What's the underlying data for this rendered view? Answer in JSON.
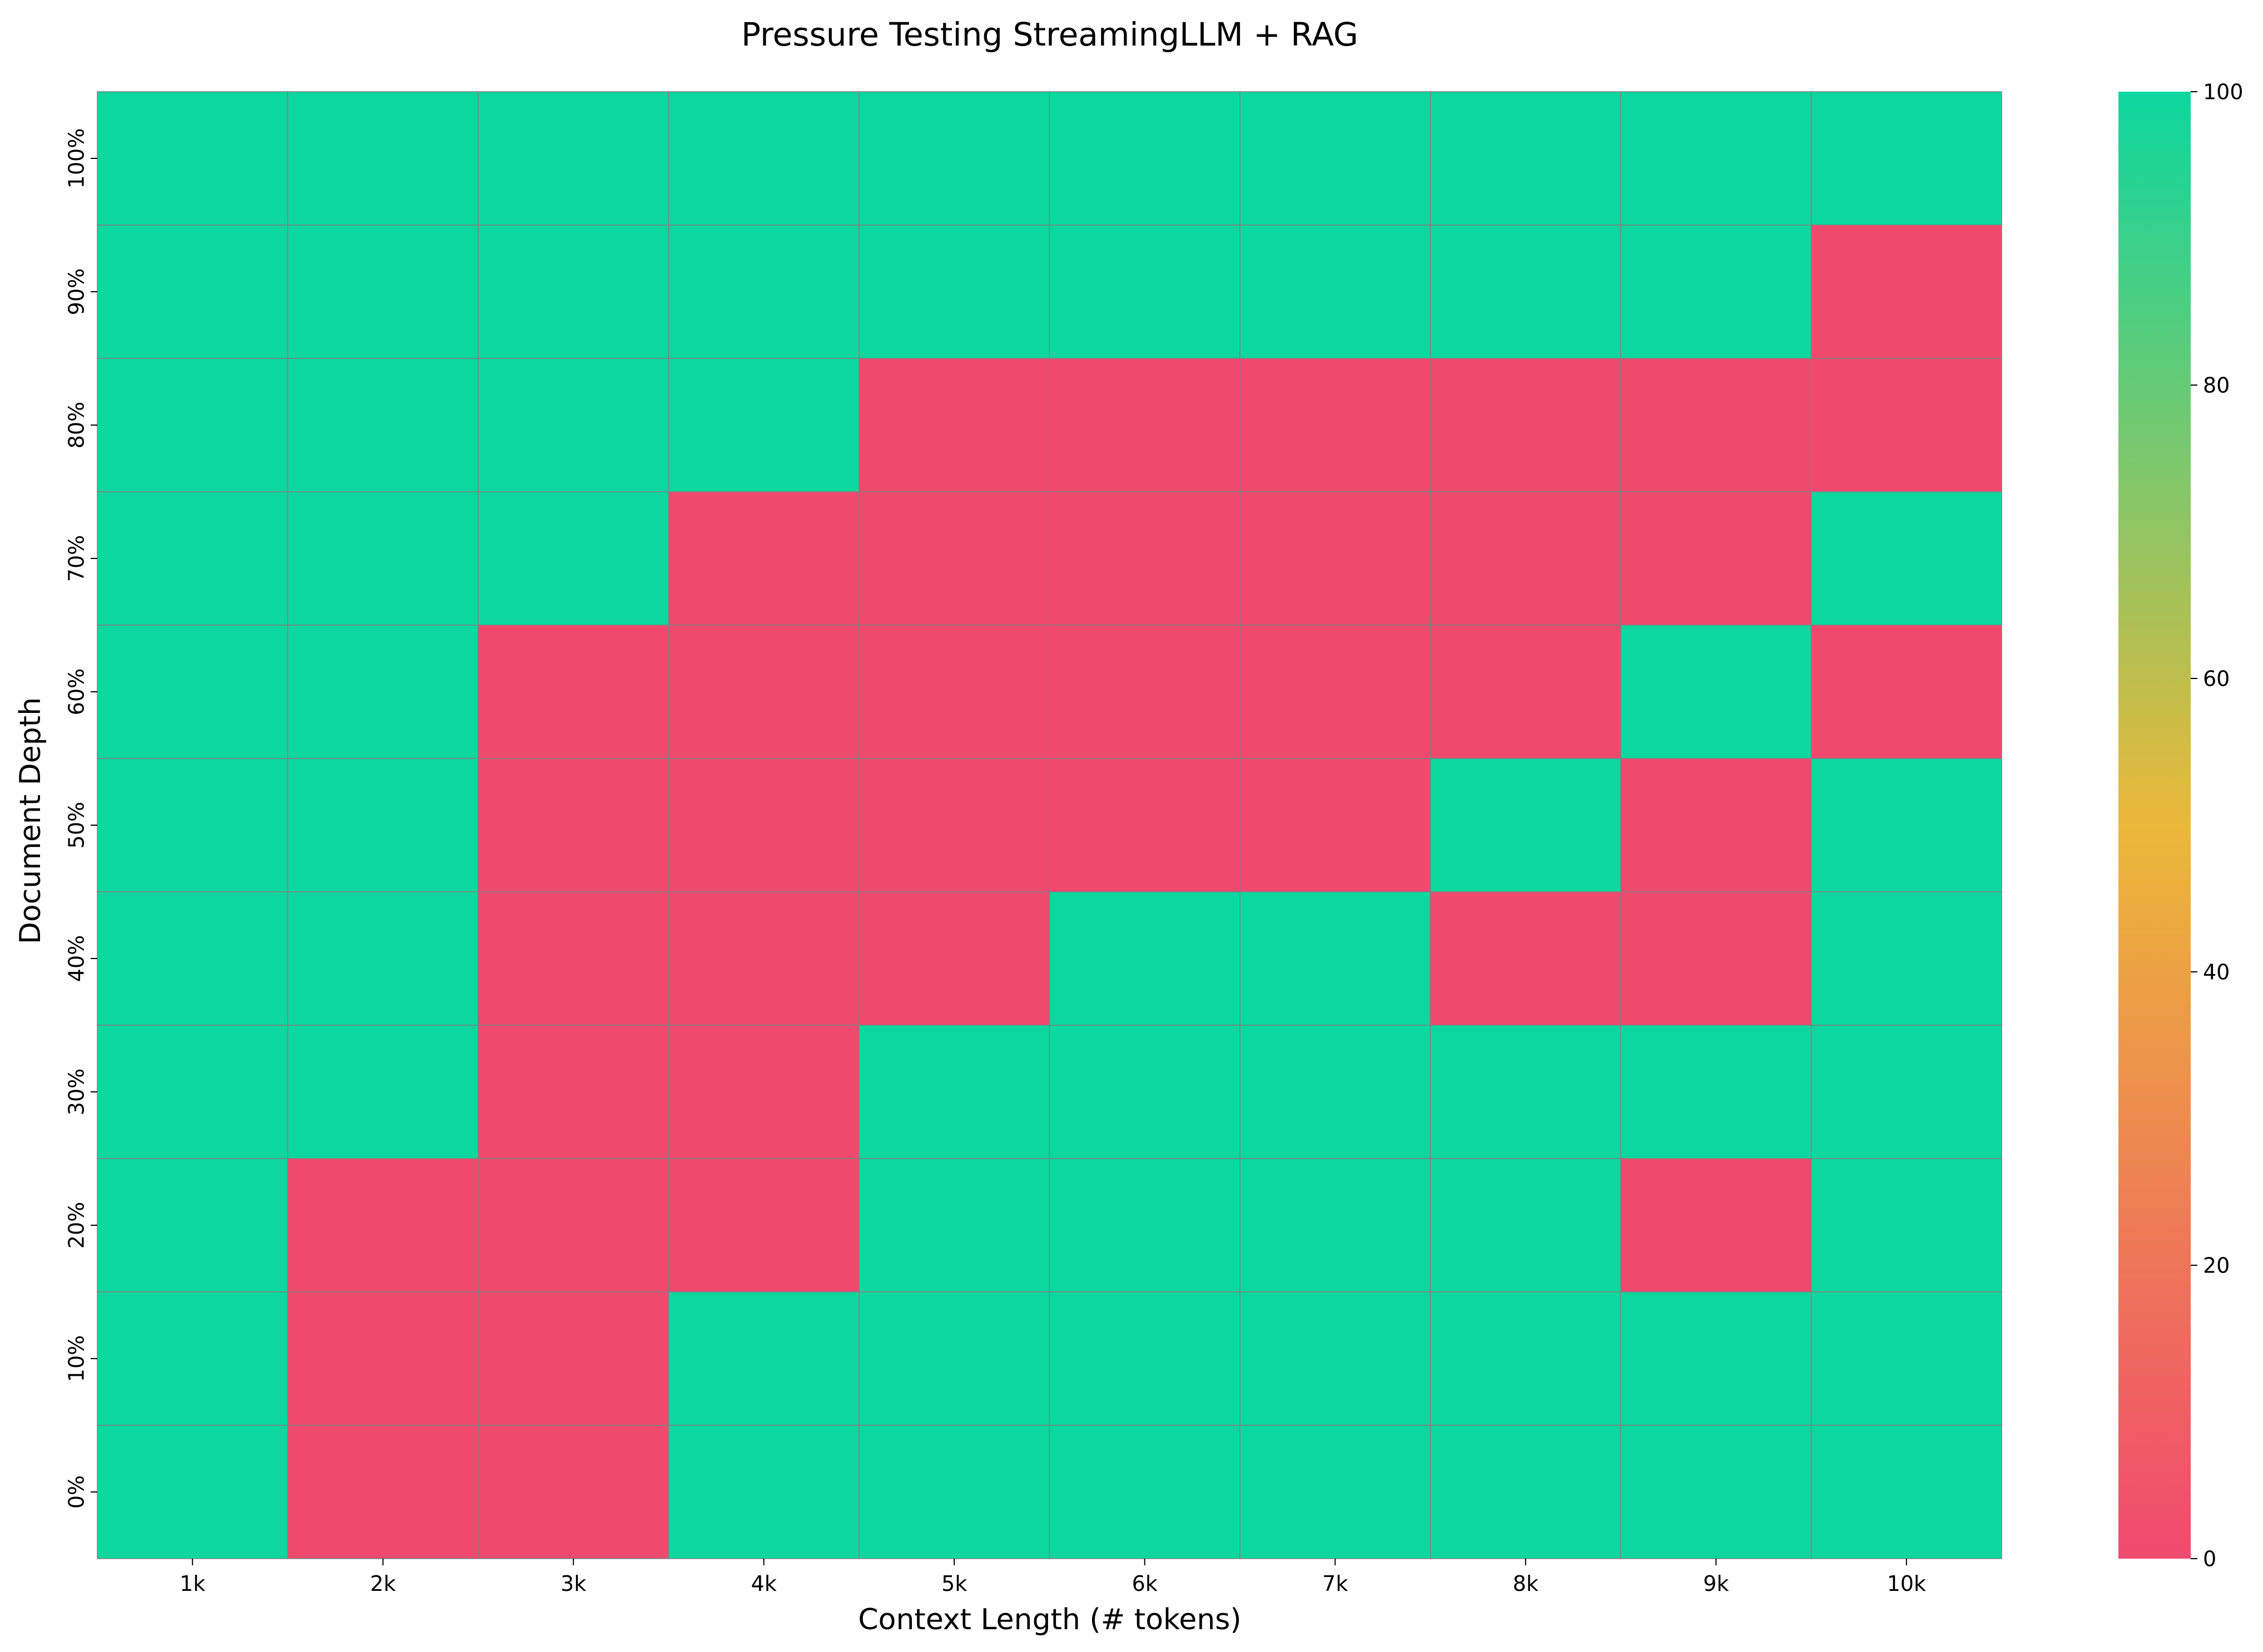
{
  "chart_data": {
    "type": "heatmap",
    "title": "Pressure Testing StreamingLLM + RAG",
    "xlabel": "Context Length (# tokens)",
    "ylabel": "Document Depth",
    "x_categories": [
      "1k",
      "2k",
      "3k",
      "4k",
      "5k",
      "6k",
      "7k",
      "8k",
      "9k",
      "10k"
    ],
    "y_categories": [
      "100%",
      "90%",
      "80%",
      "70%",
      "60%",
      "50%",
      "40%",
      "30%",
      "20%",
      "10%",
      "0%"
    ],
    "values": [
      [
        100,
        100,
        100,
        100,
        100,
        100,
        100,
        100,
        100,
        100
      ],
      [
        100,
        100,
        100,
        100,
        100,
        100,
        100,
        100,
        100,
        0
      ],
      [
        100,
        100,
        100,
        100,
        0,
        0,
        0,
        0,
        0,
        0
      ],
      [
        100,
        100,
        100,
        0,
        0,
        0,
        0,
        0,
        0,
        100
      ],
      [
        100,
        100,
        0,
        0,
        0,
        0,
        0,
        0,
        100,
        0
      ],
      [
        100,
        100,
        0,
        0,
        0,
        0,
        0,
        100,
        0,
        100
      ],
      [
        100,
        100,
        0,
        0,
        0,
        100,
        100,
        0,
        0,
        100
      ],
      [
        100,
        100,
        0,
        0,
        100,
        100,
        100,
        100,
        100,
        100
      ],
      [
        100,
        0,
        0,
        0,
        100,
        100,
        100,
        100,
        0,
        100
      ],
      [
        100,
        0,
        0,
        100,
        100,
        100,
        100,
        100,
        100,
        100
      ],
      [
        100,
        0,
        0,
        100,
        100,
        100,
        100,
        100,
        100,
        100
      ]
    ],
    "vmin": 0,
    "vmax": 100,
    "colorbar": {
      "ticks": [
        "0",
        "20",
        "40",
        "60",
        "80",
        "100"
      ],
      "colors": [
        "#f0496e",
        "#ebb839",
        "#0cd79f"
      ]
    },
    "grid": true,
    "grid_color": "#808080"
  }
}
